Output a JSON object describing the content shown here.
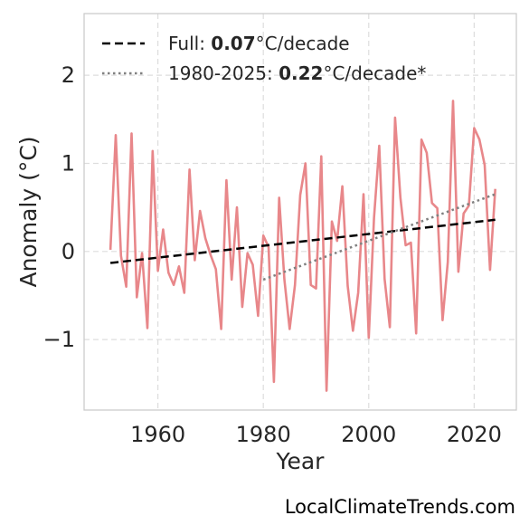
{
  "chart_data": {
    "type": "line",
    "xlabel": "Year",
    "ylabel": "Anomaly (°C)",
    "xlim": [
      1946,
      2028
    ],
    "ylim": [
      -1.8,
      2.7
    ],
    "xticks": [
      1960,
      1980,
      2000,
      2020
    ],
    "xtick_labels": [
      "1960",
      "1980",
      "2000",
      "2020"
    ],
    "yticks": [
      -1,
      0,
      1,
      2
    ],
    "ytick_labels": [
      "−1",
      "0",
      "1",
      "2"
    ],
    "grid": true,
    "legend_position": "top-left",
    "series": [
      {
        "kind": "anomaly",
        "color": "#e8878a",
        "x": [
          1951,
          1952,
          1953,
          1954,
          1955,
          1956,
          1957,
          1958,
          1959,
          1960,
          1961,
          1962,
          1963,
          1964,
          1965,
          1966,
          1967,
          1968,
          1969,
          1970,
          1971,
          1972,
          1973,
          1974,
          1975,
          1976,
          1977,
          1978,
          1979,
          1980,
          1981,
          1982,
          1983,
          1984,
          1985,
          1986,
          1987,
          1988,
          1989,
          1990,
          1991,
          1992,
          1993,
          1994,
          1995,
          1996,
          1997,
          1998,
          1999,
          2000,
          2001,
          2002,
          2003,
          2004,
          2005,
          2006,
          2007,
          2008,
          2009,
          2010,
          2011,
          2012,
          2013,
          2014,
          2015,
          2016,
          2017,
          2018,
          2019,
          2020,
          2021,
          2022,
          2023,
          2024
        ],
        "y": [
          0.02,
          1.32,
          -0.05,
          -0.4,
          1.34,
          -0.52,
          -0.02,
          -0.87,
          1.14,
          -0.22,
          0.25,
          -0.24,
          -0.38,
          -0.17,
          -0.47,
          0.93,
          -0.1,
          0.46,
          0.15,
          -0.04,
          -0.2,
          -0.88,
          0.81,
          -0.32,
          0.5,
          -0.63,
          -0.02,
          -0.15,
          -0.73,
          0.18,
          0.05,
          -1.48,
          0.61,
          -0.32,
          -0.88,
          -0.38,
          0.64,
          1.0,
          -0.38,
          -0.42,
          1.08,
          -1.58,
          0.34,
          0.12,
          0.74,
          -0.39,
          -0.9,
          -0.47,
          0.65,
          -0.98,
          0.38,
          1.2,
          -0.31,
          -0.86,
          1.52,
          0.61,
          0.07,
          0.1,
          -0.93,
          1.27,
          1.12,
          0.55,
          0.49,
          -0.78,
          -0.12,
          1.71,
          -0.23,
          0.43,
          0.52,
          1.4,
          1.27,
          0.98,
          -0.21,
          0.71
        ]
      },
      {
        "kind": "trend-full",
        "color": "#000000",
        "x": [
          1951,
          2024
        ],
        "y": [
          -0.13,
          0.36
        ]
      },
      {
        "kind": "trend-recent",
        "color": "#808080",
        "x": [
          1980,
          2024
        ],
        "y": [
          -0.32,
          0.65
        ]
      }
    ]
  },
  "legend": {
    "items": [
      {
        "prefix": "Full: ",
        "value": "0.07",
        "suffix": "°C/decade"
      },
      {
        "prefix": "1980-2025: ",
        "value": "0.22",
        "suffix": "°C/decade*"
      }
    ]
  },
  "footer": {
    "source": "LocalClimateTrends.com"
  }
}
